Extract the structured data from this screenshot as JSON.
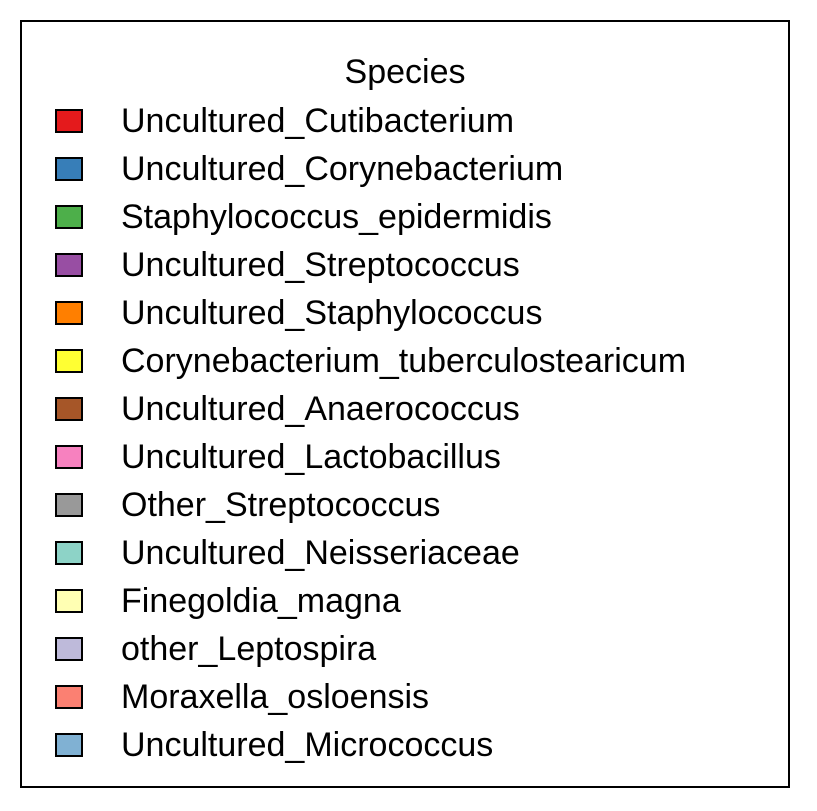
{
  "chart_data": {
    "type": "bar",
    "legend": {
      "title": "Species",
      "placement": "standalone",
      "entries": [
        {
          "label": "Uncultured_Cutibacterium",
          "color": "#e41a1c"
        },
        {
          "label": "Uncultured_Corynebacterium",
          "color": "#377eb8"
        },
        {
          "label": "Staphylococcus_epidermidis",
          "color": "#4daf4a"
        },
        {
          "label": "Uncultured_Streptococcus",
          "color": "#984ea3"
        },
        {
          "label": "Uncultured_Staphylococcus",
          "color": "#ff7f00"
        },
        {
          "label": "Corynebacterium_tuberculostearicum",
          "color": "#ffff33"
        },
        {
          "label": "Uncultured_Anaerococcus",
          "color": "#a65628"
        },
        {
          "label": "Uncultured_Lactobacillus",
          "color": "#f781bf"
        },
        {
          "label": "Other_Streptococcus",
          "color": "#999999"
        },
        {
          "label": "Uncultured_Neisseriaceae",
          "color": "#8dd3c7"
        },
        {
          "label": "Finegoldia_magna",
          "color": "#ffffb3"
        },
        {
          "label": "other_Leptospira",
          "color": "#bebada"
        },
        {
          "label": "Moraxella_osloensis",
          "color": "#fb8072"
        },
        {
          "label": "Uncultured_Micrococcus",
          "color": "#80b1d3"
        }
      ]
    }
  }
}
